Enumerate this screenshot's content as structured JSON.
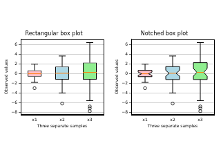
{
  "chart_data": [
    {
      "type": "box",
      "title": "Rectangular box plot",
      "x_label": "Three separate samples",
      "y_label": "Observed values",
      "categories": [
        "x1",
        "x2",
        "x3"
      ],
      "colors": [
        "#ffc0cb",
        "#add8e6",
        "#90ee90"
      ],
      "whisker_low": [
        -1.8,
        -4.0,
        -5.6
      ],
      "q1": [
        -0.6,
        -1.2,
        -1.2
      ],
      "median": [
        0.0,
        0.1,
        0.3
      ],
      "q3": [
        0.7,
        1.5,
        2.3
      ],
      "whisker_high": [
        2.0,
        3.7,
        6.5
      ],
      "outliers": [
        [
          -3.0
        ],
        [
          -6.2
        ],
        [
          -6.8,
          -7.2,
          -7.8
        ]
      ],
      "ylim": [
        -8.5,
        7.2
      ],
      "yticks": [
        {
          "value": -8,
          "label": "−8"
        },
        {
          "value": -6,
          "label": "−6"
        },
        {
          "value": -4,
          "label": "−4"
        },
        {
          "value": -2,
          "label": "−2"
        },
        0,
        2,
        4,
        6
      ],
      "grid": "y"
    },
    {
      "type": "box",
      "title": "Notched box plot",
      "x_label": "Three separate samples",
      "y_label": "Observed values",
      "categories": [
        "x1",
        "x2",
        "x3"
      ],
      "colors": [
        "#ffc0cb",
        "#add8e6",
        "#90ee90"
      ],
      "whisker_low": [
        -1.8,
        -4.0,
        -5.6
      ],
      "q1": [
        -0.6,
        -1.2,
        -1.2
      ],
      "median": [
        0.0,
        0.1,
        0.3
      ],
      "q3": [
        0.7,
        1.5,
        2.3
      ],
      "whisker_high": [
        2.0,
        3.7,
        6.5
      ],
      "notch_low": [
        -0.35,
        -0.5,
        -0.5
      ],
      "notch_high": [
        0.35,
        0.7,
        1.1
      ],
      "outliers": [
        [
          -3.0
        ],
        [
          -6.2
        ],
        [
          -6.8,
          -7.2,
          -7.8
        ]
      ],
      "ylim": [
        -8.5,
        7.2
      ],
      "yticks": [
        {
          "value": -8,
          "label": "−8"
        },
        {
          "value": -6,
          "label": "−6"
        },
        {
          "value": -4,
          "label": "−4"
        },
        {
          "value": -2,
          "label": "−2"
        },
        0,
        2,
        4,
        6
      ],
      "grid": "y"
    }
  ]
}
